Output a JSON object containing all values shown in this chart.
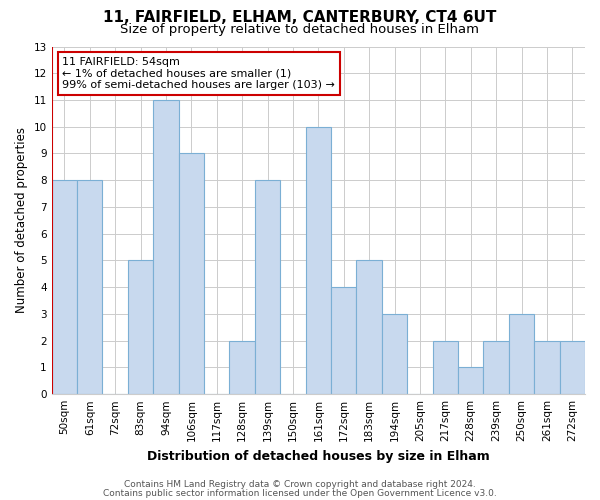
{
  "title": "11, FAIRFIELD, ELHAM, CANTERBURY, CT4 6UT",
  "subtitle": "Size of property relative to detached houses in Elham",
  "xlabel": "Distribution of detached houses by size in Elham",
  "ylabel": "Number of detached properties",
  "categories": [
    "50sqm",
    "61sqm",
    "72sqm",
    "83sqm",
    "94sqm",
    "106sqm",
    "117sqm",
    "128sqm",
    "139sqm",
    "150sqm",
    "161sqm",
    "172sqm",
    "183sqm",
    "194sqm",
    "205sqm",
    "217sqm",
    "228sqm",
    "239sqm",
    "250sqm",
    "261sqm",
    "272sqm"
  ],
  "values": [
    8,
    8,
    0,
    5,
    11,
    9,
    0,
    2,
    8,
    0,
    10,
    4,
    5,
    3,
    0,
    2,
    1,
    2,
    3,
    2,
    2
  ],
  "bar_color": "#c8d9ee",
  "bar_edge_color": "#7bafd4",
  "highlight_index": 0,
  "highlight_edge_color": "#cc0000",
  "ylim": [
    0,
    13
  ],
  "yticks": [
    0,
    1,
    2,
    3,
    4,
    5,
    6,
    7,
    8,
    9,
    10,
    11,
    12,
    13
  ],
  "annotation_box_text": "11 FAIRFIELD: 54sqm\n← 1% of detached houses are smaller (1)\n99% of semi-detached houses are larger (103) →",
  "annotation_box_edge_color": "#cc0000",
  "annotation_box_face_color": "#ffffff",
  "grid_color": "#cccccc",
  "background_color": "#ffffff",
  "footer_line1": "Contains HM Land Registry data © Crown copyright and database right 2024.",
  "footer_line2": "Contains public sector information licensed under the Open Government Licence v3.0.",
  "title_fontsize": 11,
  "subtitle_fontsize": 9.5,
  "xlabel_fontsize": 9,
  "ylabel_fontsize": 8.5,
  "tick_fontsize": 7.5,
  "footer_fontsize": 6.5
}
